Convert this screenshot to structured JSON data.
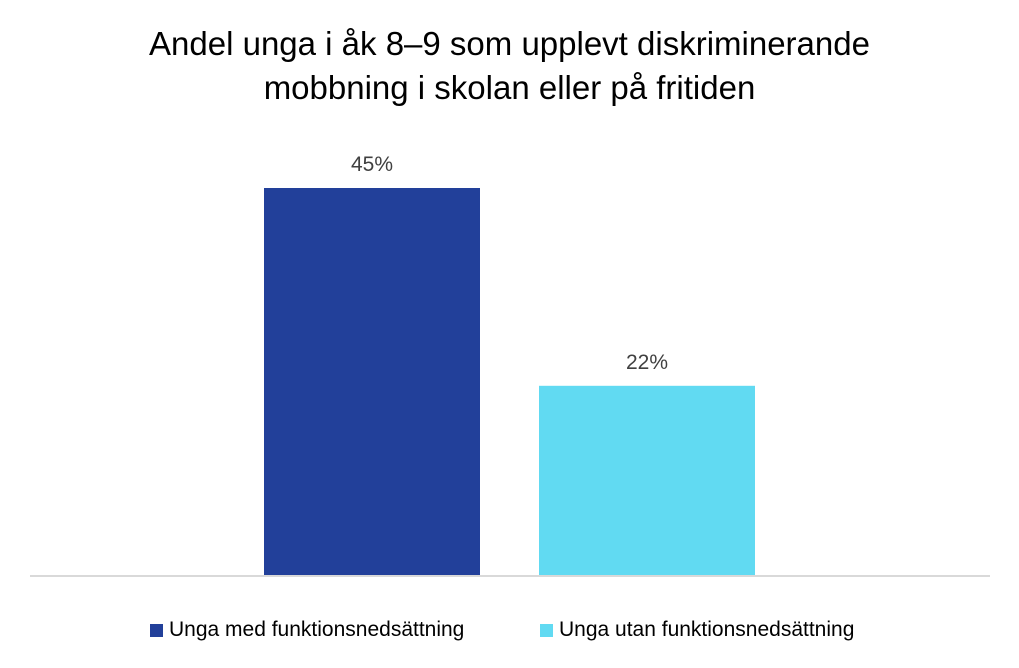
{
  "chart_data": {
    "type": "bar",
    "title_lines": [
      "Andel unga i åk 8–9 som upplevt diskriminerande",
      "mobbning i skolan eller på fritiden"
    ],
    "categories": [
      "Unga med funktionsnedsättning",
      "Unga utan funktionsnedsättning"
    ],
    "values": [
      45,
      22
    ],
    "data_labels": [
      "45%",
      "22%"
    ],
    "colors": [
      "#22409A",
      "#61DAF2"
    ],
    "unit": "%",
    "ylim": [
      0,
      45
    ],
    "grid": false,
    "legend": {
      "position": "bottom",
      "entries": [
        "Unga med funktionsnedsättning",
        "Unga utan funktionsnedsättning"
      ]
    }
  }
}
